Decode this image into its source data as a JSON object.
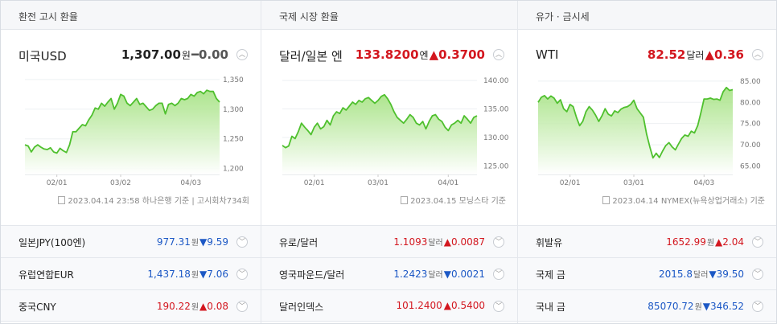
{
  "panels": [
    {
      "header": "환전 고시 환율",
      "main": {
        "name": "미국USD",
        "value": "1,307.00",
        "unit": "원",
        "arrow": "━",
        "change": "0.00",
        "dir": "flat"
      },
      "source": "2023.04.14 23:58 하나은행 기준 | 고시회차734회",
      "rows": [
        {
          "name": "일본JPY(100엔)",
          "value": "977.31",
          "unit": "원",
          "arrow": "▼",
          "change": "9.59",
          "dir": "down"
        },
        {
          "name": "유럽연합EUR",
          "value": "1,437.18",
          "unit": "원",
          "arrow": "▼",
          "change": "7.06",
          "dir": "down"
        },
        {
          "name": "중국CNY",
          "value": "190.22",
          "unit": "원",
          "arrow": "▲",
          "change": "0.08",
          "dir": "up"
        }
      ]
    },
    {
      "header": "국제 시장 환율",
      "main": {
        "name": "달러/일본 엔",
        "value": "133.8200",
        "unit": "엔",
        "arrow": "▲",
        "change": "0.3700",
        "dir": "up"
      },
      "source": "2023.04.15 모닝스타 기준",
      "rows": [
        {
          "name": "유로/달러",
          "value": "1.1093",
          "unit": "달러",
          "arrow": "▲",
          "change": "0.0087",
          "dir": "up"
        },
        {
          "name": "영국파운드/달러",
          "value": "1.2423",
          "unit": "달러",
          "arrow": "▼",
          "change": "0.0021",
          "dir": "down"
        },
        {
          "name": "달러인덱스",
          "value": "101.2400",
          "unit": "",
          "arrow": "▲",
          "change": "0.5400",
          "dir": "up"
        }
      ]
    },
    {
      "header": "유가 · 금시세",
      "main": {
        "name": "WTI",
        "value": "82.52",
        "unit": "달러",
        "arrow": "▲",
        "change": "0.36",
        "dir": "up"
      },
      "source": "2023.04.14 NYMEX(뉴욕상업거래소) 기준",
      "rows": [
        {
          "name": "휘발유",
          "value": "1652.99",
          "unit": "원",
          "arrow": "▲",
          "change": "2.04",
          "dir": "up"
        },
        {
          "name": "국제 금",
          "value": "2015.8",
          "unit": "달러",
          "arrow": "▼",
          "change": "39.50",
          "dir": "down"
        },
        {
          "name": "국내 금",
          "value": "85070.72",
          "unit": "원",
          "arrow": "▼",
          "change": "346.52",
          "dir": "down"
        }
      ]
    }
  ],
  "chart_data": [
    {
      "type": "area",
      "xticks": [
        "02/01",
        "03/02",
        "04/03"
      ],
      "xtick_pos": [
        10,
        30,
        52
      ],
      "yticks": [
        1200,
        1250,
        1300,
        1350
      ],
      "ytick_labels": [
        "1,200",
        "1,250",
        "1,300",
        "1,350"
      ],
      "ylim": [
        1190,
        1358
      ],
      "n": 62,
      "values": [
        1240,
        1238,
        1228,
        1236,
        1240,
        1236,
        1233,
        1232,
        1235,
        1228,
        1226,
        1234,
        1230,
        1227,
        1240,
        1262,
        1262,
        1268,
        1274,
        1272,
        1282,
        1290,
        1302,
        1300,
        1310,
        1305,
        1312,
        1318,
        1300,
        1310,
        1325,
        1322,
        1310,
        1306,
        1312,
        1318,
        1308,
        1310,
        1304,
        1298,
        1300,
        1306,
        1310,
        1310,
        1292,
        1308,
        1310,
        1306,
        1310,
        1318,
        1316,
        1318,
        1325,
        1322,
        1328,
        1330,
        1326,
        1332,
        1330,
        1330,
        1318,
        1312
      ]
    },
    {
      "type": "area",
      "xticks": [
        "02/01",
        "03/01",
        "04/01"
      ],
      "xtick_pos": [
        10,
        30,
        52
      ],
      "yticks": [
        125,
        130,
        135,
        140
      ],
      "ytick_labels": [
        "125.00",
        "130.00",
        "135.00",
        "140.00"
      ],
      "ylim": [
        123.5,
        141
      ],
      "n": 62,
      "values": [
        128.6,
        128.2,
        128.5,
        130.2,
        129.8,
        131.0,
        132.5,
        131.8,
        131.2,
        130.5,
        131.8,
        132.5,
        131.5,
        131.9,
        133.0,
        132.2,
        133.8,
        134.5,
        134.2,
        135.2,
        134.8,
        135.5,
        136.2,
        135.8,
        136.5,
        136.2,
        136.8,
        137.0,
        136.5,
        136.0,
        136.5,
        137.2,
        137.5,
        136.8,
        135.8,
        134.5,
        133.5,
        133.0,
        132.5,
        133.2,
        134.0,
        133.5,
        132.5,
        132.2,
        132.8,
        131.5,
        132.8,
        133.8,
        134.0,
        133.2,
        132.8,
        131.8,
        131.2,
        132.2,
        132.5,
        133.0,
        132.5,
        133.8,
        133.2,
        132.5,
        133.5,
        133.8
      ]
    },
    {
      "type": "area",
      "xticks": [
        "02/01",
        "03/01",
        "04/03"
      ],
      "xtick_pos": [
        10,
        30,
        52
      ],
      "yticks": [
        65,
        70,
        75,
        80,
        85
      ],
      "ytick_labels": [
        "65.00",
        "70.00",
        "75.00",
        "80.00",
        "85.00"
      ],
      "ylim": [
        63,
        86.5
      ],
      "n": 62,
      "values": [
        80.0,
        81.2,
        81.6,
        80.8,
        81.5,
        81.0,
        79.8,
        80.6,
        78.5,
        77.8,
        79.5,
        79.0,
        76.5,
        74.5,
        75.5,
        77.8,
        79.0,
        78.2,
        77.0,
        75.5,
        76.8,
        78.5,
        77.2,
        76.8,
        78.0,
        77.6,
        78.4,
        78.8,
        79.0,
        79.5,
        80.5,
        78.5,
        77.5,
        76.5,
        72.5,
        69.5,
        66.9,
        68.0,
        67.0,
        68.5,
        69.8,
        70.5,
        69.5,
        68.8,
        70.2,
        71.5,
        72.3,
        72.0,
        73.2,
        72.8,
        74.5,
        77.5,
        80.8,
        80.8,
        81.0,
        80.7,
        80.8,
        80.5,
        82.5,
        83.5,
        82.8,
        83.0
      ]
    }
  ]
}
